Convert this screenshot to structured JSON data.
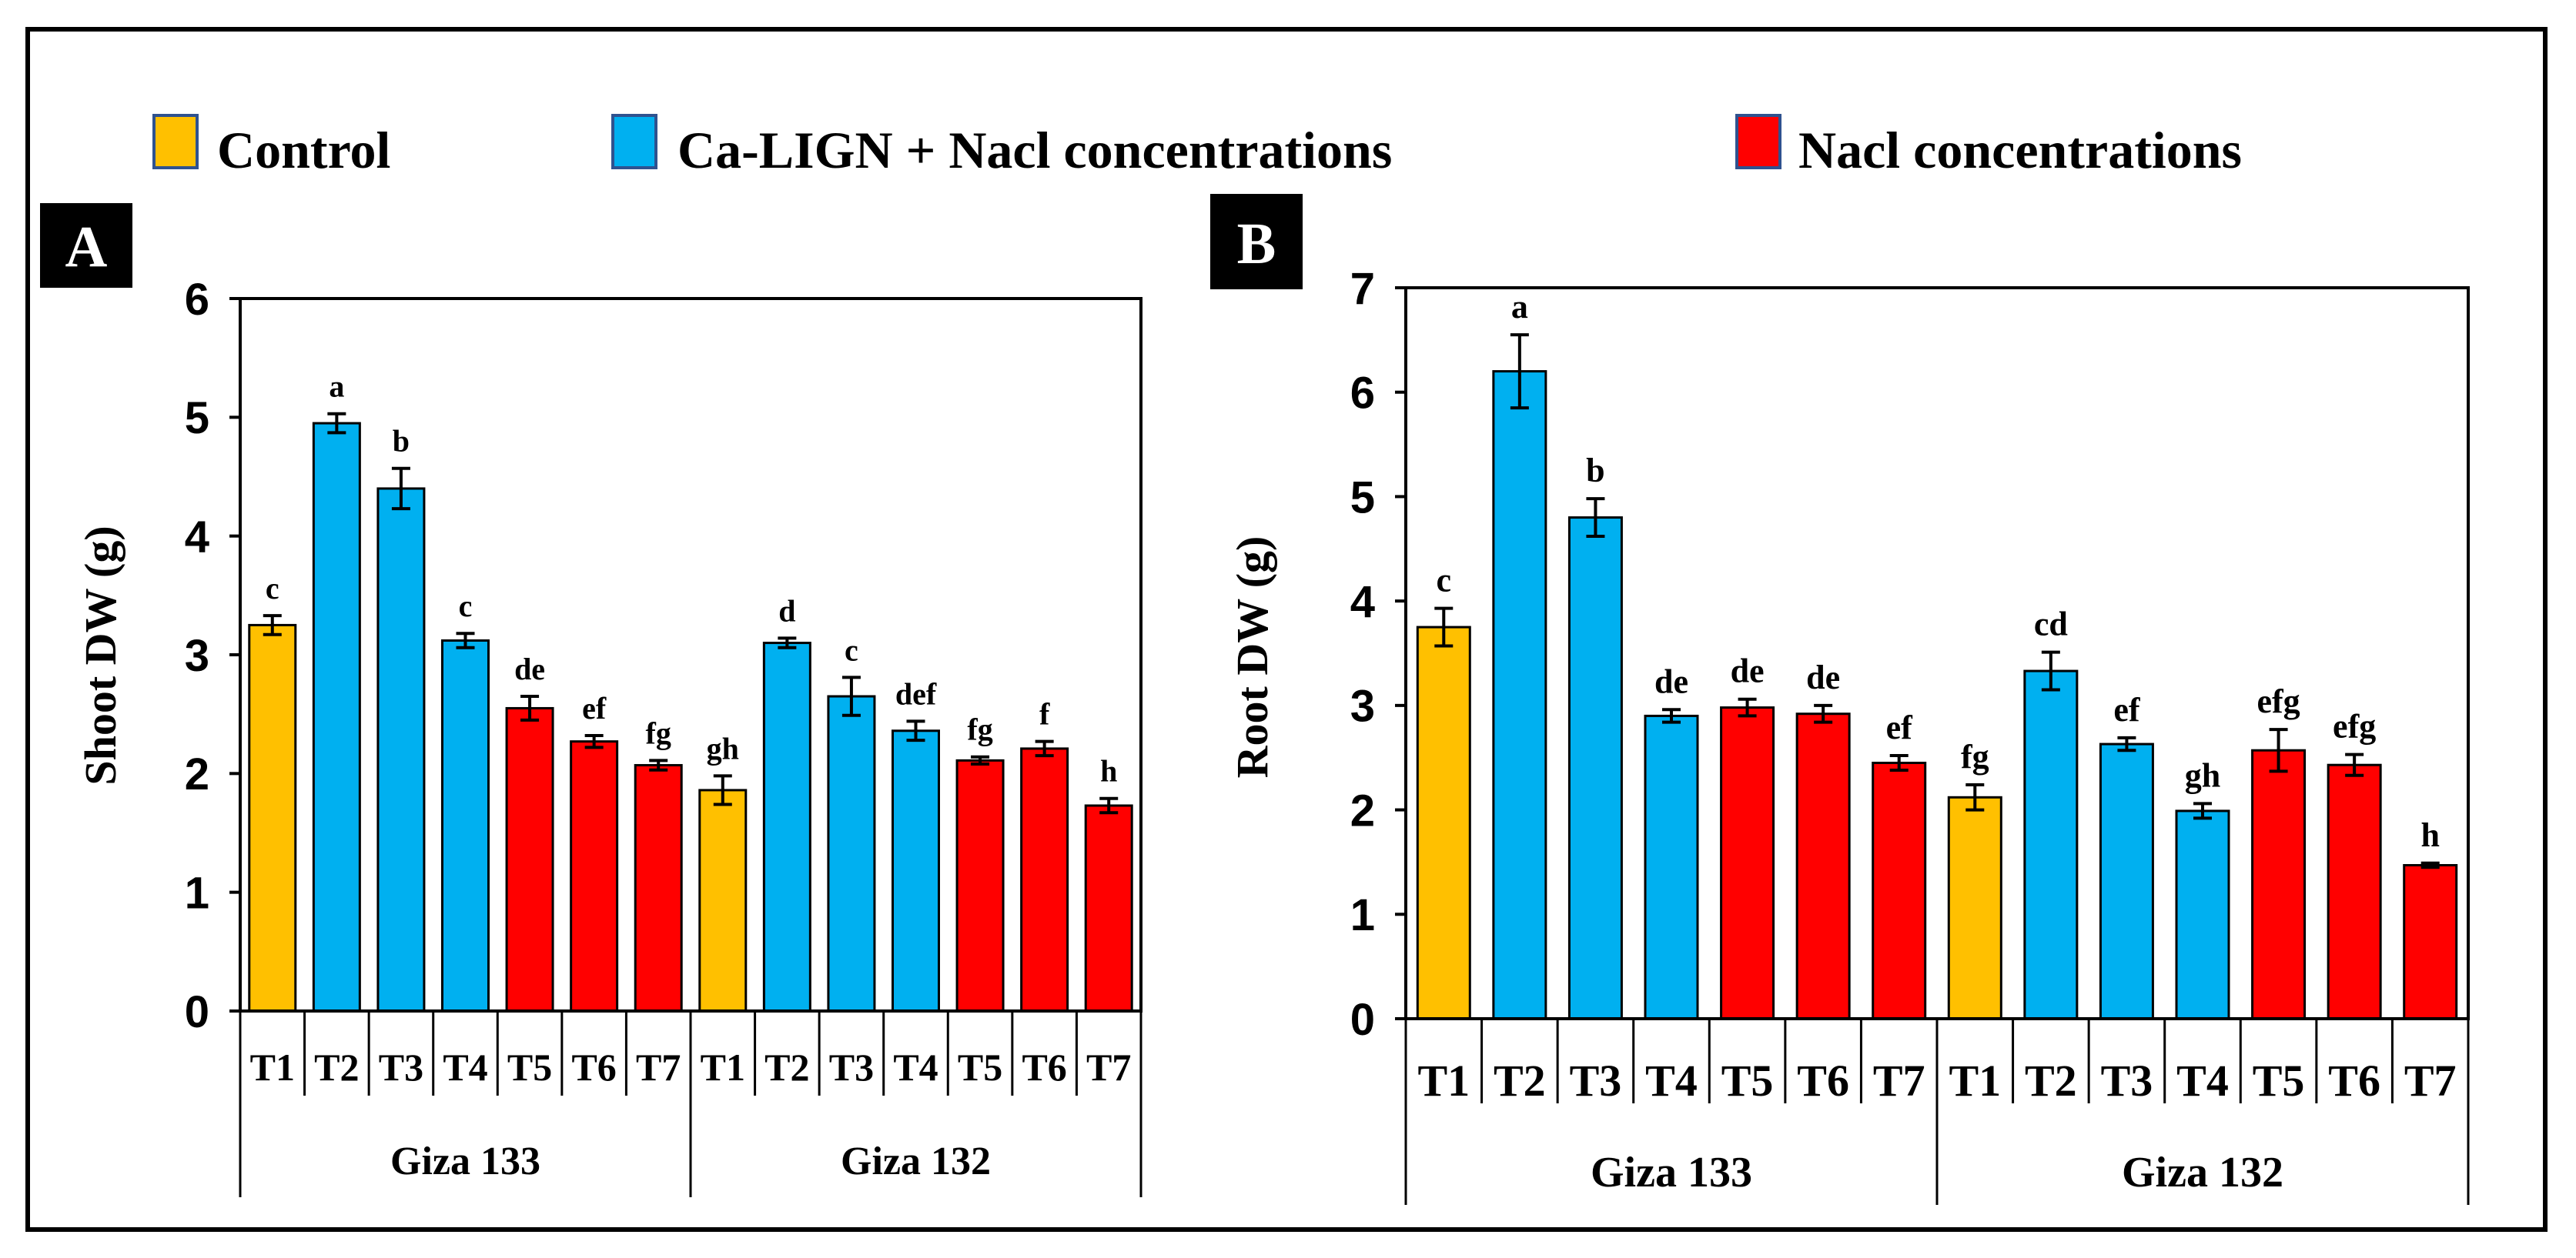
{
  "legend": {
    "items": [
      {
        "label": "Control",
        "color": "#ffc000"
      },
      {
        "label": "Ca-LIGN + Nacl concentrations",
        "color": "#00b0f0"
      },
      {
        "label": "Nacl concentrations",
        "color": "#ff0000"
      }
    ]
  },
  "chart_data": [
    {
      "type": "bar",
      "panel_label": "A",
      "ylabel": "Shoot DW (g)",
      "ylim": [
        0,
        6
      ],
      "yticks": [
        "0",
        "1",
        "2",
        "3",
        "4",
        "5",
        "6"
      ],
      "categories": [
        "T1",
        "T2",
        "T3",
        "T4",
        "T5",
        "T6",
        "T7",
        "T1",
        "T2",
        "T3",
        "T4",
        "T5",
        "T6",
        "T7"
      ],
      "groups": [
        "Giza 133",
        "Giza 132"
      ],
      "values": [
        3.25,
        4.95,
        4.4,
        3.12,
        2.55,
        2.27,
        2.07,
        1.86,
        3.1,
        2.65,
        2.36,
        2.11,
        2.21,
        1.73
      ],
      "errors": [
        0.08,
        0.08,
        0.17,
        0.06,
        0.1,
        0.05,
        0.04,
        0.12,
        0.04,
        0.16,
        0.08,
        0.03,
        0.06,
        0.06
      ],
      "letters": [
        "c",
        "a",
        "b",
        "c",
        "de",
        "ef",
        "fg",
        "gh",
        "d",
        "c",
        "def",
        "fg",
        "f",
        "h"
      ],
      "colors": [
        "#ffc000",
        "#00b0f0",
        "#00b0f0",
        "#00b0f0",
        "#ff0000",
        "#ff0000",
        "#ff0000",
        "#ffc000",
        "#00b0f0",
        "#00b0f0",
        "#00b0f0",
        "#ff0000",
        "#ff0000",
        "#ff0000"
      ]
    },
    {
      "type": "bar",
      "panel_label": "B",
      "ylabel": "Root DW (g)",
      "ylim": [
        0,
        7
      ],
      "yticks": [
        "0",
        "1",
        "2",
        "3",
        "4",
        "5",
        "6",
        "7"
      ],
      "categories": [
        "T1",
        "T2",
        "T3",
        "T4",
        "T5",
        "T6",
        "T7",
        "T1",
        "T2",
        "T3",
        "T4",
        "T5",
        "T6",
        "T7"
      ],
      "groups": [
        "Giza 133",
        "Giza 132"
      ],
      "values": [
        3.75,
        6.2,
        4.8,
        2.9,
        2.98,
        2.92,
        2.45,
        2.12,
        3.33,
        2.63,
        1.99,
        2.57,
        2.43,
        1.47
      ],
      "errors": [
        0.18,
        0.35,
        0.18,
        0.06,
        0.08,
        0.08,
        0.07,
        0.12,
        0.18,
        0.06,
        0.07,
        0.2,
        0.1,
        0.02
      ],
      "letters": [
        "c",
        "a",
        "b",
        "de",
        "de",
        "de",
        "ef",
        "fg",
        "cd",
        "ef",
        "gh",
        "efg",
        "efg",
        "h"
      ],
      "colors": [
        "#ffc000",
        "#00b0f0",
        "#00b0f0",
        "#00b0f0",
        "#ff0000",
        "#ff0000",
        "#ff0000",
        "#ffc000",
        "#00b0f0",
        "#00b0f0",
        "#00b0f0",
        "#ff0000",
        "#ff0000",
        "#ff0000"
      ]
    }
  ]
}
